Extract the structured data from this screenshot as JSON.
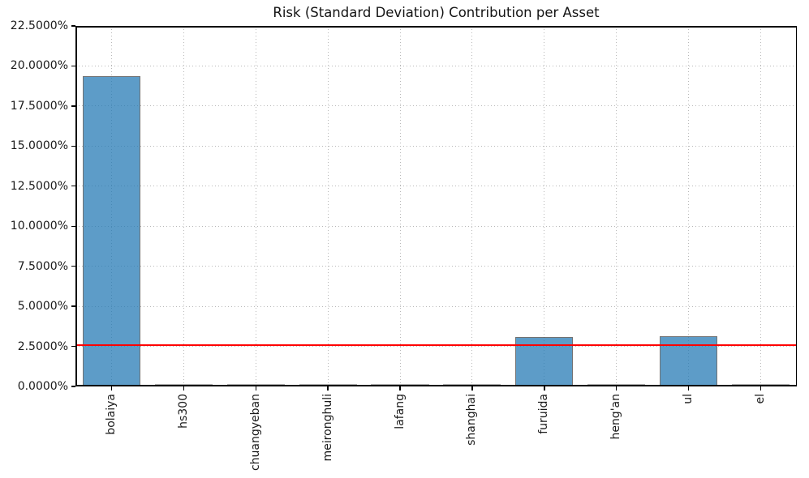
{
  "chart_data": {
    "type": "bar",
    "title": "Risk (Standard Deviation) Contribution per Asset",
    "categories": [
      "bolaiya",
      "hs300",
      "chuangyeban",
      "meironghuli",
      "lafang",
      "shanghai",
      "furuida",
      "heng'an",
      "ul",
      "el"
    ],
    "values": [
      19.38,
      0.0,
      0.0,
      0.0,
      0.0,
      0.0,
      3.1,
      0.0,
      3.14,
      0.0
    ],
    "value_unit": "%",
    "xlabel": "",
    "ylabel": "",
    "ylim": [
      0,
      22.5
    ],
    "ytick_step": 2.5,
    "ytick_decimals": 4,
    "ytick_labels": [
      "0.0000%",
      "2.5000%",
      "5.0000%",
      "7.5000%",
      "10.0000%",
      "12.5000%",
      "15.0000%",
      "17.5000%",
      "20.0000%",
      "22.5000%"
    ],
    "reference_line": {
      "value": 2.58,
      "color": "#ff0000"
    },
    "grid": {
      "visible": true,
      "style": "dotted",
      "color": "#b8b8b8",
      "horizontal": true,
      "vertical": true
    },
    "legend_position": "none",
    "x_label_rotation_deg": 90,
    "colors": {
      "bar_fill": "#1f77b4",
      "bar_fill_opacity": 0.72,
      "bar_edge": "#3d3d3d",
      "zero_bar_stub": "#b0b0b0",
      "spine": "#000000",
      "text": "#1a1a1a",
      "background": "#ffffff"
    }
  }
}
